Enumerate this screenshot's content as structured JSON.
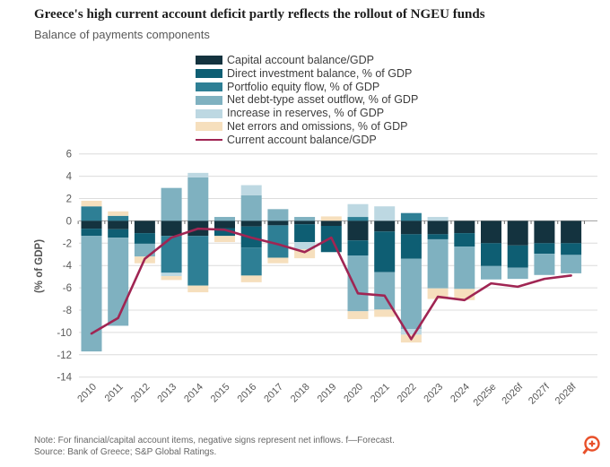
{
  "header": {
    "title": "Greece's high current account deficit partly reflects the rollout of NGEU funds",
    "subtitle": "Balance of payments components"
  },
  "colors": {
    "capital": "#14333f",
    "direct": "#0e5e73",
    "portfolio": "#2e7f95",
    "debt": "#7fb1c0",
    "reserves": "#bdd8e2",
    "errors": "#f6dfbd",
    "line": "#a02553",
    "grid": "#dcdcdc",
    "zero_axis": "#9e9e9e",
    "axis_text": "#595959",
    "zoom_icon": "#e8502a"
  },
  "chart_data": {
    "type": "bar",
    "subtype": "stacked-bar-with-line",
    "title": "Balance of payments components",
    "xlabel": "",
    "ylabel": "(% of GDP)",
    "ylim": [
      -14,
      6
    ],
    "ytick_step": 2,
    "grid": "horizontal",
    "legend_position": "top",
    "categories": [
      "2010",
      "2011",
      "2012",
      "2013",
      "2014",
      "2015",
      "2016",
      "2017",
      "2018",
      "2019",
      "2020",
      "2021",
      "2022",
      "2023",
      "2024",
      "2025e",
      "2026f",
      "2027f",
      "2028f"
    ],
    "legend": [
      {
        "id": "capital",
        "type": "swatch",
        "label": "Capital account balance/GDP"
      },
      {
        "id": "direct",
        "type": "swatch",
        "label": "Direct investment balance, % of GDP"
      },
      {
        "id": "portfolio",
        "type": "swatch",
        "label": "Portfolio equity flow, % of GDP"
      },
      {
        "id": "debt",
        "type": "swatch",
        "label": "Net debt-type asset outflow, % of GDP"
      },
      {
        "id": "reserves",
        "type": "swatch",
        "label": "Increase in reserves, % of GDP"
      },
      {
        "id": "errors",
        "type": "swatch",
        "label": "Net errors and omissions, % of GDP"
      },
      {
        "id": "line",
        "type": "line",
        "label": "Current account balance/GDP"
      }
    ],
    "bars": [
      {
        "year": "2010",
        "pos": [
          [
            "portfolio",
            1.3
          ],
          [
            "errors",
            0.5
          ]
        ],
        "neg": [
          [
            "capital",
            0.7
          ],
          [
            "direct",
            0.65
          ],
          [
            "debt",
            10.35
          ]
        ]
      },
      {
        "year": "2011",
        "pos": [
          [
            "portfolio",
            0.45
          ],
          [
            "errors",
            0.4
          ]
        ],
        "neg": [
          [
            "capital",
            0.75
          ],
          [
            "direct",
            0.75
          ],
          [
            "debt",
            7.9
          ]
        ]
      },
      {
        "year": "2012",
        "pos": [],
        "neg": [
          [
            "capital",
            1.1
          ],
          [
            "direct",
            0.95
          ],
          [
            "debt",
            1.15
          ],
          [
            "errors",
            0.6
          ]
        ]
      },
      {
        "year": "2013",
        "pos": [
          [
            "debt",
            2.95
          ]
        ],
        "neg": [
          [
            "capital",
            1.35
          ],
          [
            "portfolio",
            3.3
          ],
          [
            "reserves",
            0.3
          ],
          [
            "errors",
            0.35
          ]
        ]
      },
      {
        "year": "2014",
        "pos": [
          [
            "debt",
            3.9
          ],
          [
            "reserves",
            0.4
          ]
        ],
        "neg": [
          [
            "capital",
            1.35
          ],
          [
            "portfolio",
            4.45
          ],
          [
            "errors",
            0.6
          ]
        ]
      },
      {
        "year": "2015",
        "pos": [
          [
            "debt",
            0.35
          ]
        ],
        "neg": [
          [
            "capital",
            0.65
          ],
          [
            "direct",
            0.7
          ],
          [
            "errors",
            0.55
          ]
        ]
      },
      {
        "year": "2016",
        "pos": [
          [
            "debt",
            2.3
          ],
          [
            "reserves",
            0.9
          ]
        ],
        "neg": [
          [
            "capital",
            0.5
          ],
          [
            "direct",
            1.9
          ],
          [
            "portfolio",
            2.5
          ],
          [
            "errors",
            0.6
          ]
        ]
      },
      {
        "year": "2017",
        "pos": [
          [
            "debt",
            1.05
          ]
        ],
        "neg": [
          [
            "capital",
            0.4
          ],
          [
            "portfolio",
            2.9
          ],
          [
            "errors",
            0.5
          ]
        ]
      },
      {
        "year": "2018",
        "pos": [
          [
            "debt",
            0.35
          ]
        ],
        "neg": [
          [
            "capital",
            0.3
          ],
          [
            "direct",
            1.6
          ],
          [
            "reserves",
            0.65
          ],
          [
            "errors",
            0.8
          ]
        ]
      },
      {
        "year": "2019",
        "pos": [
          [
            "errors",
            0.4
          ]
        ],
        "neg": [
          [
            "capital",
            0.45
          ],
          [
            "direct",
            2.35
          ]
        ]
      },
      {
        "year": "2020",
        "pos": [
          [
            "portfolio",
            0.35
          ],
          [
            "reserves",
            1.15
          ]
        ],
        "neg": [
          [
            "capital",
            1.75
          ],
          [
            "direct",
            1.35
          ],
          [
            "debt",
            5.0
          ],
          [
            "errors",
            0.7
          ]
        ]
      },
      {
        "year": "2021",
        "pos": [
          [
            "reserves",
            1.3
          ]
        ],
        "neg": [
          [
            "capital",
            0.95
          ],
          [
            "direct",
            3.65
          ],
          [
            "debt",
            3.35
          ],
          [
            "errors",
            0.65
          ]
        ]
      },
      {
        "year": "2022",
        "pos": [
          [
            "portfolio",
            0.7
          ]
        ],
        "neg": [
          [
            "capital",
            1.2
          ],
          [
            "direct",
            2.2
          ],
          [
            "debt",
            6.3
          ],
          [
            "reserves",
            0.5
          ],
          [
            "errors",
            0.7
          ]
        ]
      },
      {
        "year": "2023",
        "pos": [
          [
            "reserves",
            0.35
          ]
        ],
        "neg": [
          [
            "capital",
            1.2
          ],
          [
            "direct",
            0.45
          ],
          [
            "debt",
            4.4
          ],
          [
            "errors",
            0.95
          ]
        ]
      },
      {
        "year": "2024",
        "pos": [],
        "neg": [
          [
            "capital",
            1.1
          ],
          [
            "direct",
            1.2
          ],
          [
            "debt",
            3.8
          ],
          [
            "errors",
            1.0
          ]
        ]
      },
      {
        "year": "2025e",
        "pos": [],
        "neg": [
          [
            "capital",
            2.0
          ],
          [
            "direct",
            2.05
          ],
          [
            "debt",
            1.2
          ]
        ]
      },
      {
        "year": "2026f",
        "pos": [],
        "neg": [
          [
            "capital",
            2.2
          ],
          [
            "direct",
            2.0
          ],
          [
            "debt",
            1.0
          ]
        ]
      },
      {
        "year": "2027f",
        "pos": [],
        "neg": [
          [
            "capital",
            2.0
          ],
          [
            "direct",
            0.95
          ],
          [
            "debt",
            1.9
          ]
        ]
      },
      {
        "year": "2028f",
        "pos": [],
        "neg": [
          [
            "capital",
            2.0
          ],
          [
            "direct",
            1.05
          ],
          [
            "debt",
            1.65
          ]
        ]
      }
    ],
    "line_series": {
      "name": "Current account balance/GDP",
      "values": [
        -10.1,
        -8.7,
        -3.4,
        -1.5,
        -0.7,
        -0.8,
        -1.5,
        -2.1,
        -2.8,
        -1.5,
        -6.5,
        -6.7,
        -10.6,
        -6.8,
        -7.1,
        -5.6,
        -5.9,
        -5.2,
        -4.9
      ]
    }
  },
  "footer": {
    "note": "Note: For financial/capital account items, negative signs represent net inflows. f—Forecast.",
    "source": "Source: Bank of Greece; S&P Global Ratings."
  }
}
